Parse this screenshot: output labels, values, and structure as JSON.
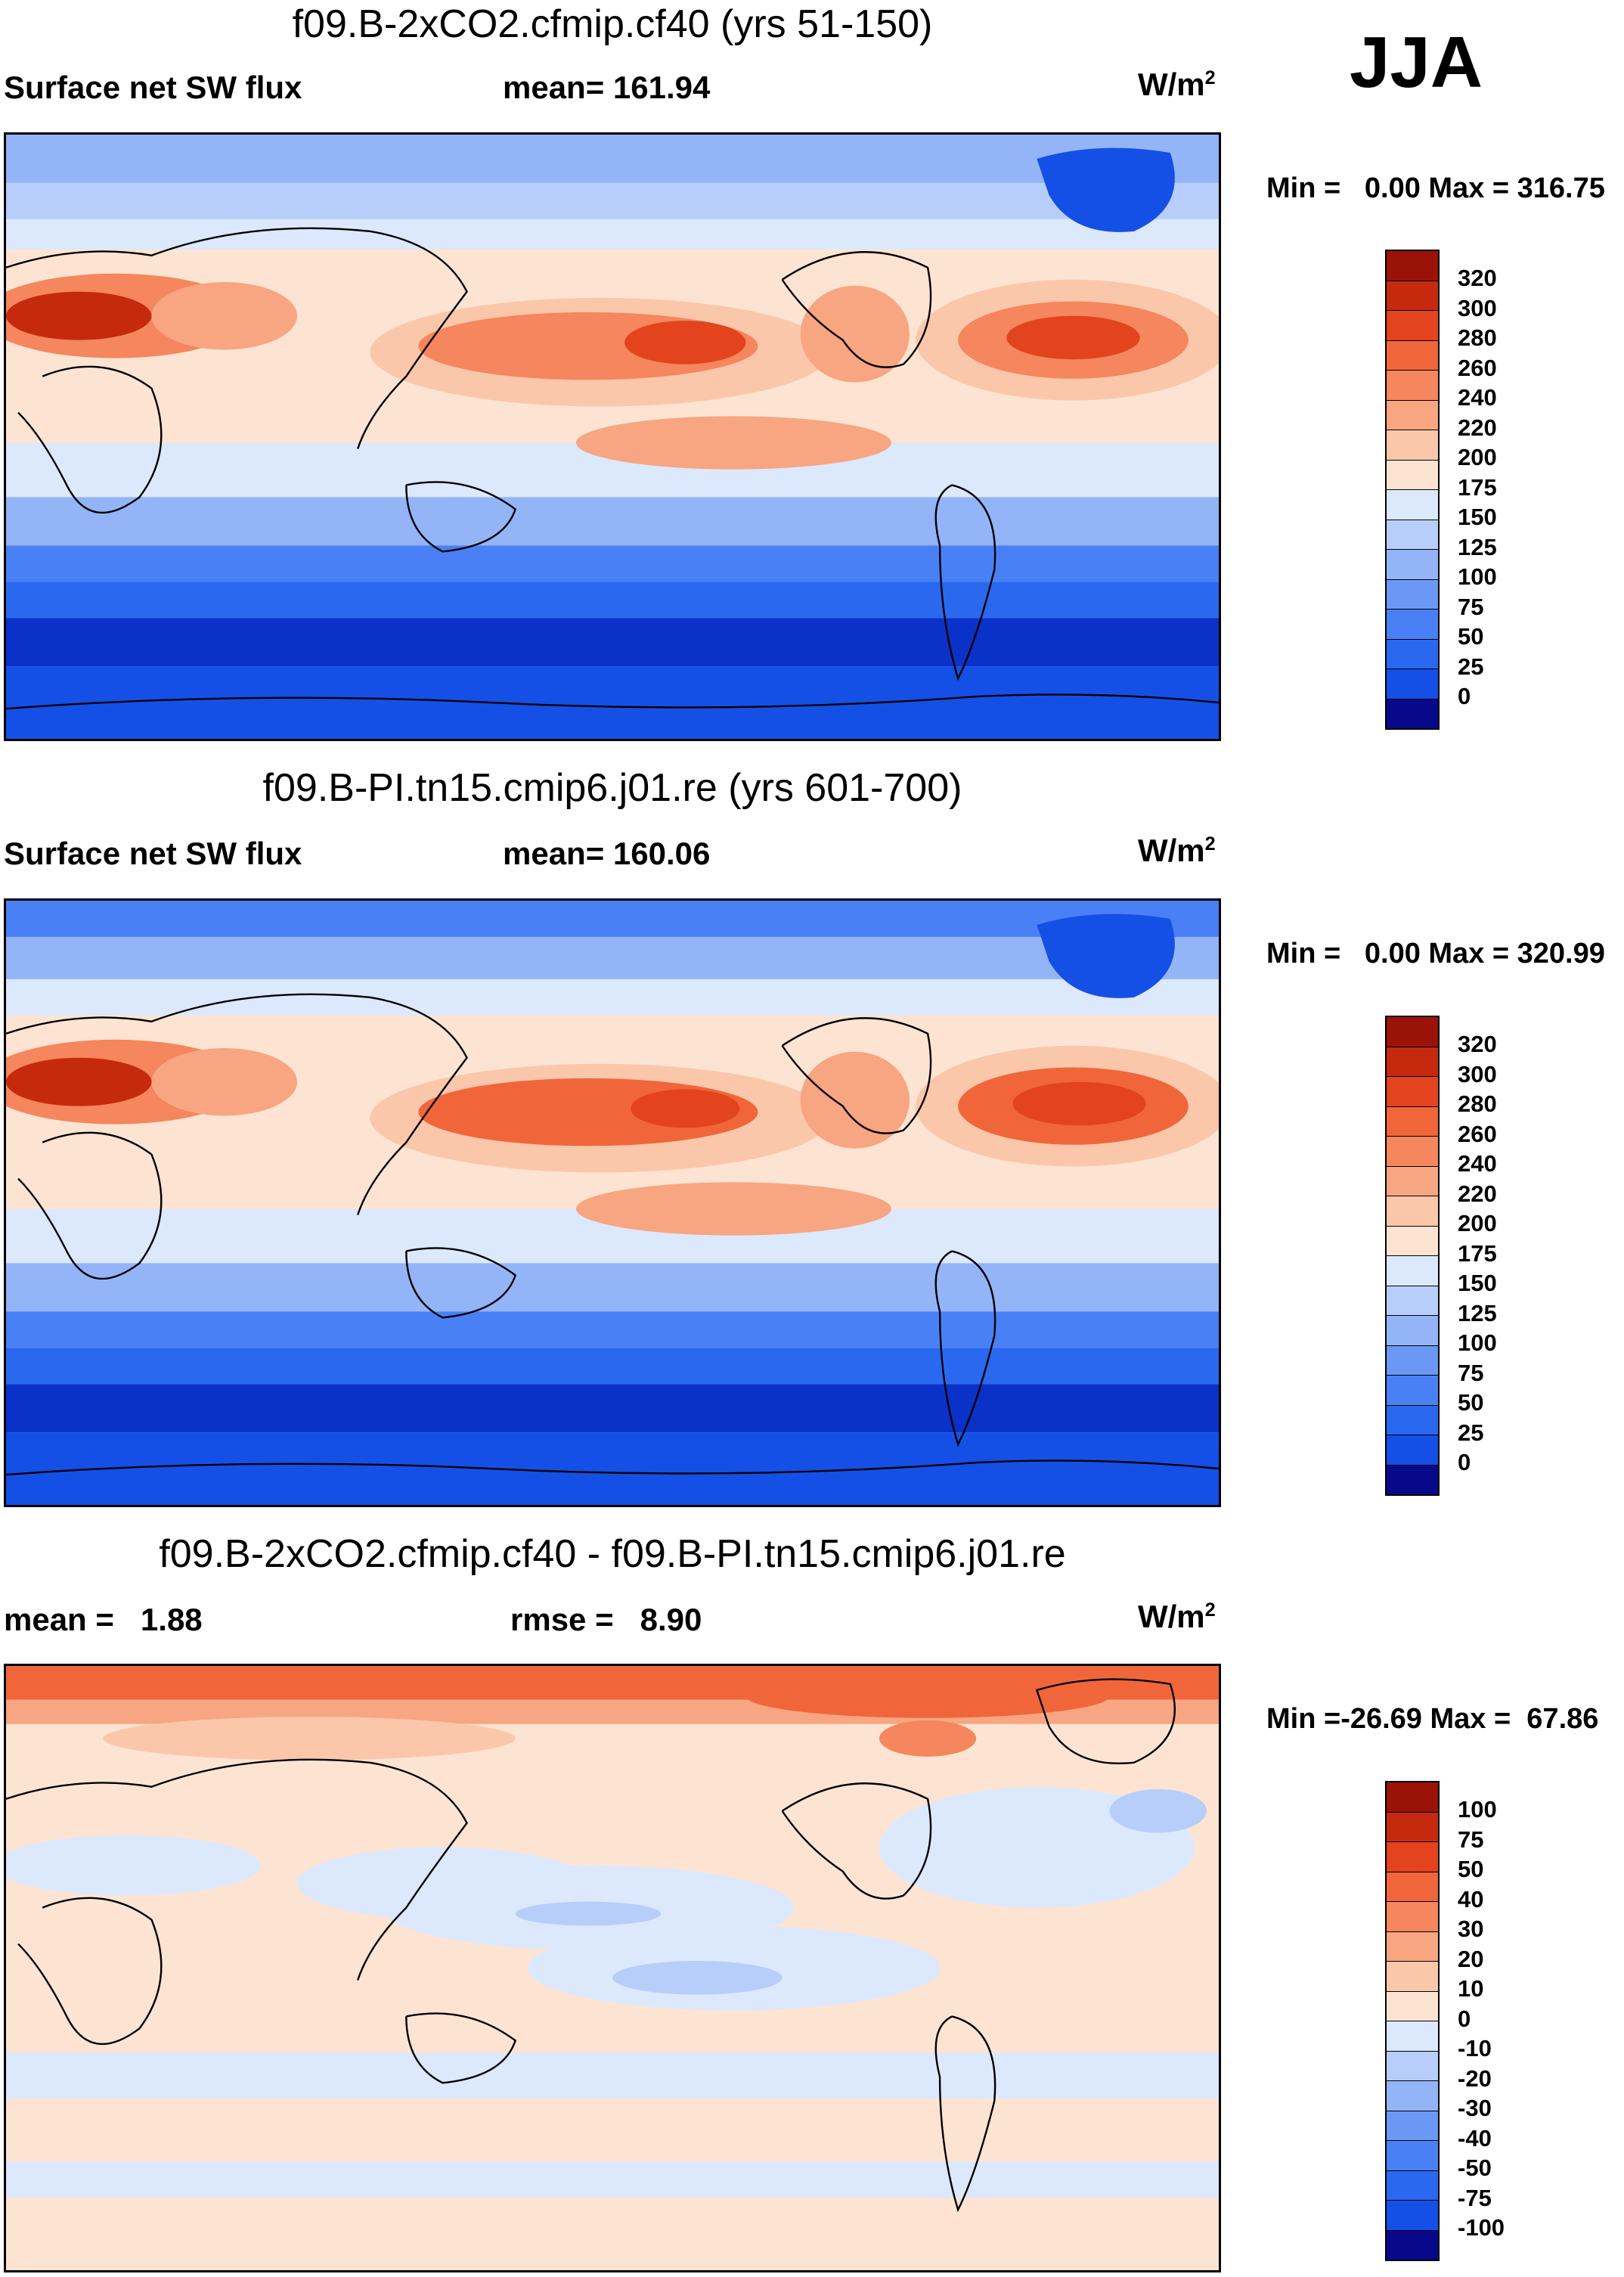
{
  "season": "JJA",
  "colors": {
    "abs": [
      "#08088a",
      "#0a32c8",
      "#1450e6",
      "#2a68f0",
      "#4a80f5",
      "#6c98f5",
      "#93b4f7",
      "#b8cefa",
      "#dce8fc",
      "#fde4d2",
      "#fbc7ab",
      "#f8a582",
      "#f5865d",
      "#f0663a",
      "#e3441d",
      "#c52a0e",
      "#9b1207"
    ],
    "diff": [
      "#08088a",
      "#0a32c8",
      "#1450e6",
      "#2a68f0",
      "#4a80f5",
      "#6c98f5",
      "#93b4f7",
      "#b8cefa",
      "#dce8fc",
      "#fde4d2",
      "#fbc7ab",
      "#f8a582",
      "#f5865d",
      "#f0663a",
      "#e3441d",
      "#c52a0e",
      "#9b1207"
    ]
  },
  "panels": [
    {
      "title": "f09.B-2xCO2.cfmip.cf40 (yrs 51-150)",
      "left_label": "Surface net SW flux",
      "mid_label": "mean= 161.94",
      "units_base": "W/m",
      "units_exp": "2",
      "min_label": "Min =",
      "min_value": "0.00",
      "max_label": "Max =",
      "max_value": "316.75",
      "colorbar_labels": [
        "320",
        "300",
        "280",
        "260",
        "240",
        "220",
        "200",
        "175",
        "150",
        "125",
        "100",
        "75",
        "50",
        "25",
        "0"
      ]
    },
    {
      "title": "f09.B-PI.tn15.cmip6.j01.re (yrs 601-700)",
      "left_label": "Surface net SW flux",
      "mid_label": "mean= 160.06",
      "units_base": "W/m",
      "units_exp": "2",
      "min_label": "Min =",
      "min_value": "0.00",
      "max_label": "Max =",
      "max_value": "320.99",
      "colorbar_labels": [
        "320",
        "300",
        "280",
        "260",
        "240",
        "220",
        "200",
        "175",
        "150",
        "125",
        "100",
        "75",
        "50",
        "25",
        "0"
      ]
    },
    {
      "title": "f09.B-2xCO2.cfmip.cf40 - f09.B-PI.tn15.cmip6.j01.re",
      "left_label": "mean =   1.88",
      "mid_label": "rmse =   8.90",
      "units_base": "W/m",
      "units_exp": "2",
      "min_label": "Min =",
      "min_value": "-26.69",
      "max_label": "Max =",
      "max_value": "67.86",
      "colorbar_labels": [
        "100",
        "75",
        "50",
        "40",
        "30",
        "20",
        "10",
        "0",
        "-10",
        "-20",
        "-30",
        "-40",
        "-50",
        "-75",
        "-100"
      ]
    }
  ]
}
